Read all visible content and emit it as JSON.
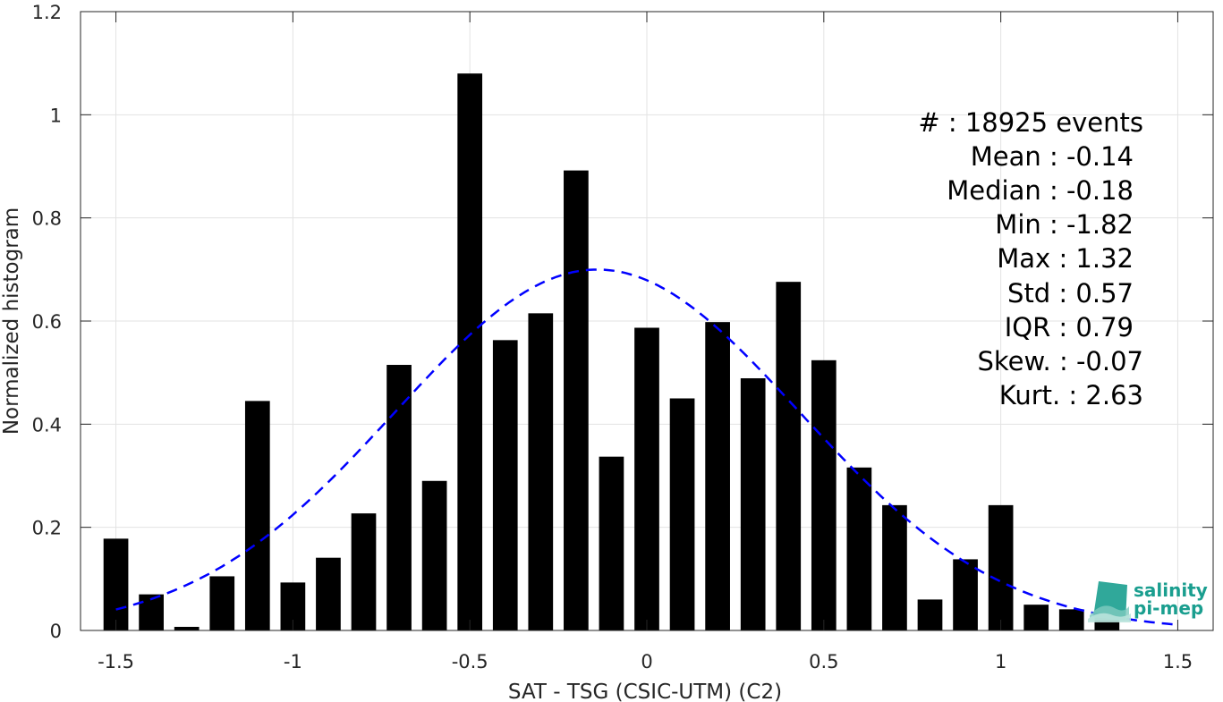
{
  "chart_data": {
    "type": "bar",
    "xlabel": "SAT - TSG (CSIC-UTM) (C2)",
    "ylabel": "Normalized histogram",
    "xlim": [
      -1.6,
      1.6
    ],
    "ylim": [
      0,
      1.2
    ],
    "xticks": [
      -1.5,
      -1,
      -0.5,
      0,
      0.5,
      1,
      1.5
    ],
    "xtick_labels": [
      "-1.5",
      "-1",
      "-0.5",
      "0",
      "0.5",
      "1",
      "1.5"
    ],
    "yticks": [
      0,
      0.2,
      0.4,
      0.6,
      0.8,
      1,
      1.2
    ],
    "ytick_labels": [
      "0",
      "0.2",
      "0.4",
      "0.6",
      "0.8",
      "1",
      "1.2"
    ],
    "grid": true,
    "bar_width": 0.07,
    "bins": {
      "x": [
        -1.5,
        -1.4,
        -1.3,
        -1.2,
        -1.1,
        -1.0,
        -0.9,
        -0.8,
        -0.7,
        -0.6,
        -0.5,
        -0.4,
        -0.3,
        -0.2,
        -0.1,
        0.0,
        0.1,
        0.2,
        0.3,
        0.4,
        0.5,
        0.6,
        0.7,
        0.8,
        0.9,
        1.0,
        1.1,
        1.2,
        1.3
      ],
      "values": [
        0.178,
        0.07,
        0.007,
        0.105,
        0.445,
        0.093,
        0.141,
        0.227,
        0.515,
        0.29,
        1.08,
        0.563,
        0.615,
        0.892,
        0.337,
        0.587,
        0.45,
        0.598,
        0.489,
        0.676,
        0.524,
        0.316,
        0.243,
        0.06,
        0.138,
        0.243,
        0.05,
        0.041,
        0.025
      ],
      "color": "#000000"
    },
    "fit": {
      "type": "normal",
      "mean": -0.14,
      "std": 0.57,
      "x_range": [
        -1.5,
        1.5
      ],
      "color": "#0000ff",
      "style": "dashed"
    },
    "annotations": [
      "#  : 18925 events",
      "Mean : -0.14",
      "Median : -0.18",
      "Min : -1.82",
      "Max : 1.32",
      "Std : 0.57",
      "IQR : 0.79",
      "Skew. : -0.07",
      "Kurt. : 2.63"
    ]
  },
  "logo": {
    "line1": "salinity",
    "line2": "pi-mep",
    "color": "#1a9e8f"
  }
}
